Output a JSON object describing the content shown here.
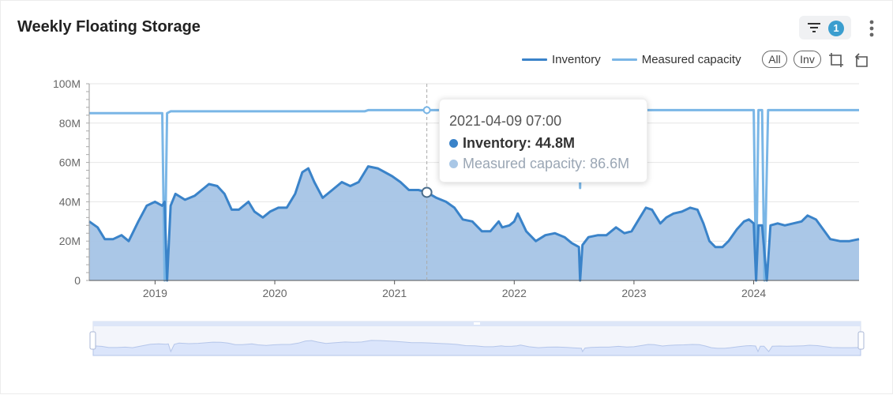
{
  "card": {
    "title": "Weekly Floating Storage",
    "filter_count": "1"
  },
  "legend": {
    "inventory": "Inventory",
    "capacity": "Measured capacity",
    "all_label": "All",
    "inv_label": "Inv"
  },
  "tooltip": {
    "date": "2021-04-09 07:00",
    "inventory": "Inventory: 44.8M",
    "capacity": "Measured capacity: 86.6M"
  },
  "colors": {
    "inventory_line": "#3a83c9",
    "inventory_fill": "#a5c4e6",
    "capacity_line": "#7ab6e6",
    "zoom_fill": "#dbe5fb",
    "badge": "#3b9ecf"
  },
  "chart_data": {
    "type": "area",
    "ylim": [
      0,
      100
    ],
    "y_ticks": [
      "0",
      "20M",
      "40M",
      "60M",
      "80M",
      "100M"
    ],
    "x_ticks": [
      "2019",
      "2020",
      "2021",
      "2022",
      "2023",
      "2024"
    ],
    "x_range": [
      2018.45,
      2024.88
    ],
    "grid": true,
    "legend_position": "top-right",
    "series": [
      {
        "name": "Inventory",
        "unit": "M",
        "points": [
          [
            2018.45,
            30
          ],
          [
            2018.52,
            27
          ],
          [
            2018.58,
            21
          ],
          [
            2018.65,
            21
          ],
          [
            2018.72,
            23
          ],
          [
            2018.78,
            20
          ],
          [
            2018.86,
            30
          ],
          [
            2018.93,
            38
          ],
          [
            2019.0,
            40
          ],
          [
            2019.06,
            38
          ],
          [
            2019.08,
            40
          ],
          [
            2019.1,
            0
          ],
          [
            2019.13,
            38
          ],
          [
            2019.17,
            44
          ],
          [
            2019.25,
            41
          ],
          [
            2019.33,
            43
          ],
          [
            2019.41,
            47
          ],
          [
            2019.45,
            49
          ],
          [
            2019.52,
            48
          ],
          [
            2019.58,
            44
          ],
          [
            2019.64,
            36
          ],
          [
            2019.7,
            36
          ],
          [
            2019.78,
            40
          ],
          [
            2019.83,
            35
          ],
          [
            2019.9,
            32
          ],
          [
            2019.96,
            35
          ],
          [
            2020.03,
            37
          ],
          [
            2020.1,
            37
          ],
          [
            2020.17,
            44
          ],
          [
            2020.23,
            55
          ],
          [
            2020.28,
            57
          ],
          [
            2020.33,
            50
          ],
          [
            2020.4,
            42
          ],
          [
            2020.48,
            46
          ],
          [
            2020.56,
            50
          ],
          [
            2020.63,
            48
          ],
          [
            2020.7,
            50
          ],
          [
            2020.78,
            58
          ],
          [
            2020.86,
            57
          ],
          [
            2020.92,
            55
          ],
          [
            2020.98,
            53
          ],
          [
            2021.05,
            50
          ],
          [
            2021.12,
            46
          ],
          [
            2021.2,
            46
          ],
          [
            2021.27,
            44.8
          ],
          [
            2021.35,
            42
          ],
          [
            2021.43,
            40
          ],
          [
            2021.5,
            37
          ],
          [
            2021.57,
            31
          ],
          [
            2021.65,
            30
          ],
          [
            2021.73,
            25
          ],
          [
            2021.8,
            25
          ],
          [
            2021.87,
            30
          ],
          [
            2021.9,
            27
          ],
          [
            2021.96,
            28
          ],
          [
            2022.0,
            30
          ],
          [
            2022.03,
            34
          ],
          [
            2022.1,
            25
          ],
          [
            2022.18,
            20
          ],
          [
            2022.26,
            23
          ],
          [
            2022.34,
            24
          ],
          [
            2022.42,
            22
          ],
          [
            2022.48,
            19
          ],
          [
            2022.54,
            17
          ],
          [
            2022.55,
            0
          ],
          [
            2022.57,
            18
          ],
          [
            2022.62,
            22
          ],
          [
            2022.7,
            23
          ],
          [
            2022.77,
            23
          ],
          [
            2022.85,
            27
          ],
          [
            2022.92,
            24
          ],
          [
            2022.98,
            25
          ],
          [
            2023.05,
            32
          ],
          [
            2023.1,
            37
          ],
          [
            2023.15,
            36
          ],
          [
            2023.22,
            29
          ],
          [
            2023.27,
            32
          ],
          [
            2023.33,
            34
          ],
          [
            2023.4,
            35
          ],
          [
            2023.47,
            37
          ],
          [
            2023.53,
            36
          ],
          [
            2023.58,
            29
          ],
          [
            2023.63,
            20
          ],
          [
            2023.68,
            17
          ],
          [
            2023.74,
            17
          ],
          [
            2023.79,
            20
          ],
          [
            2023.86,
            26
          ],
          [
            2023.92,
            30
          ],
          [
            2023.96,
            31
          ],
          [
            2024.0,
            29
          ],
          [
            2024.02,
            0
          ],
          [
            2024.04,
            28
          ],
          [
            2024.07,
            28
          ],
          [
            2024.11,
            0
          ],
          [
            2024.14,
            28
          ],
          [
            2024.2,
            29
          ],
          [
            2024.26,
            28
          ],
          [
            2024.33,
            29
          ],
          [
            2024.4,
            30
          ],
          [
            2024.45,
            33
          ],
          [
            2024.52,
            31
          ],
          [
            2024.58,
            26
          ],
          [
            2024.64,
            21
          ],
          [
            2024.72,
            20
          ],
          [
            2024.8,
            20
          ],
          [
            2024.88,
            21
          ]
        ]
      },
      {
        "name": "Measured capacity",
        "unit": "M",
        "points": [
          [
            2018.45,
            85
          ],
          [
            2019.06,
            85
          ],
          [
            2019.08,
            0
          ],
          [
            2019.1,
            85
          ],
          [
            2019.13,
            86
          ],
          [
            2020.75,
            86
          ],
          [
            2020.78,
            86.6
          ],
          [
            2022.54,
            86.6
          ],
          [
            2022.55,
            47
          ],
          [
            2022.56,
            86.6
          ],
          [
            2024.0,
            86.6
          ],
          [
            2024.02,
            0
          ],
          [
            2024.04,
            86.6
          ],
          [
            2024.07,
            86.6
          ],
          [
            2024.09,
            0
          ],
          [
            2024.12,
            86.6
          ],
          [
            2024.88,
            86.6
          ]
        ]
      }
    ]
  }
}
